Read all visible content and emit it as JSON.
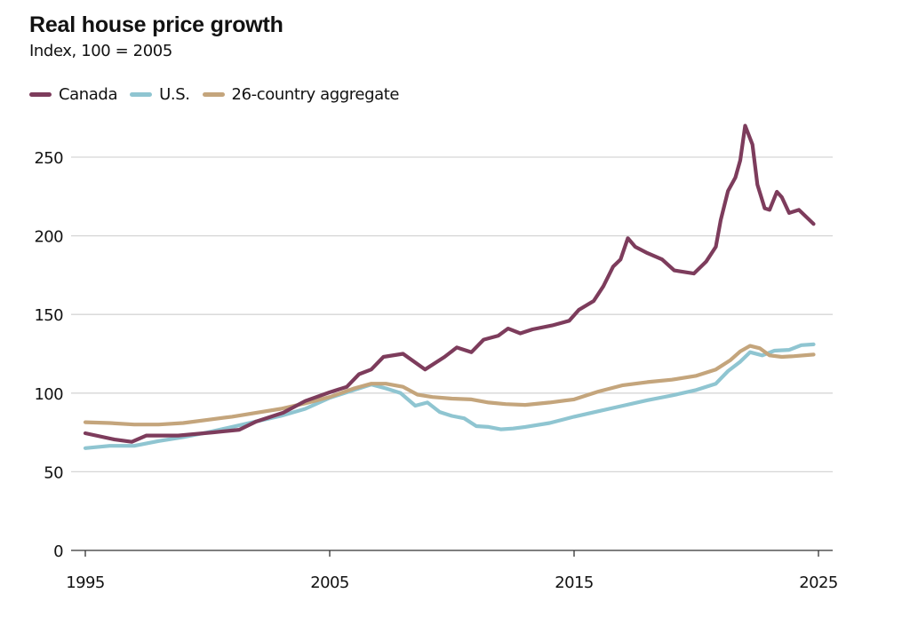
{
  "chart_data": {
    "type": "line",
    "title": "Real house price growth",
    "subtitle": "Index, 100 = 2005",
    "xlabel": "",
    "ylabel": "",
    "xlim": [
      1995,
      2025
    ],
    "ylim": [
      0,
      260
    ],
    "grid": true,
    "legend_position": "top-left",
    "x_ticks": [
      1995,
      2005,
      2015,
      2025
    ],
    "x_tick_labels": [
      "1995",
      "2005",
      "2015",
      "2025"
    ],
    "y_ticks": [
      0,
      50,
      100,
      150,
      200,
      250
    ],
    "y_tick_labels": [
      "0",
      "50",
      "100",
      "150",
      "200",
      "250"
    ],
    "series": [
      {
        "name": "Canada",
        "color": "#7d3c5c",
        "x": [
          1995.0,
          1996.2,
          1996.9,
          1997.5,
          1998.8,
          2000.2,
          2001.3,
          2002.0,
          2003.1,
          2004.0,
          2005.0,
          2005.7,
          2006.2,
          2006.7,
          2007.2,
          2008.0,
          2008.9,
          2009.7,
          2010.2,
          2010.8,
          2011.3,
          2011.9,
          2012.3,
          2012.8,
          2013.3,
          2014.1,
          2014.8,
          2015.2,
          2015.8,
          2016.2,
          2016.6,
          2016.9,
          2017.2,
          2017.5,
          2018.0,
          2018.6,
          2019.1,
          2019.9,
          2020.4,
          2020.8,
          2021.0,
          2021.3,
          2021.6,
          2021.8,
          2022.0,
          2022.3,
          2022.5,
          2022.8,
          2023.0,
          2023.3,
          2023.5,
          2023.8,
          2024.2,
          2024.8
        ],
        "values": [
          74.5,
          70.5,
          69,
          73,
          73,
          75,
          76.7,
          82,
          87.5,
          95,
          100.5,
          104,
          112,
          115,
          123,
          125,
          115,
          123,
          129,
          126,
          134,
          136.5,
          141,
          138,
          140.5,
          143,
          146,
          153,
          158.5,
          168,
          180.5,
          185,
          198.5,
          193,
          189,
          185,
          178,
          176,
          183.5,
          193,
          210,
          228.5,
          237,
          248,
          270,
          258,
          232.5,
          217.5,
          216.5,
          228,
          224.5,
          214.5,
          216.5,
          207.5
        ]
      },
      {
        "name": "U.S.",
        "color": "#8fc5d1",
        "x": [
          1995.0,
          1996.0,
          1997.0,
          1998.0,
          1999.0,
          2000.0,
          2001.0,
          2002.0,
          2003.0,
          2004.0,
          2005.0,
          2006.0,
          2006.7,
          2007.3,
          2007.9,
          2008.5,
          2009.0,
          2009.5,
          2010.0,
          2010.5,
          2011.0,
          2011.5,
          2012.0,
          2012.5,
          2013.0,
          2014.0,
          2015.0,
          2016.0,
          2017.0,
          2018.0,
          2019.0,
          2020.0,
          2020.8,
          2021.3,
          2021.8,
          2022.2,
          2022.7,
          2023.2,
          2023.8,
          2024.3,
          2024.8
        ],
        "values": [
          65,
          66.5,
          66.5,
          69.5,
          72,
          75,
          78.5,
          82,
          85.5,
          90,
          97,
          102,
          105.5,
          103,
          100,
          92,
          94,
          88,
          85.5,
          84,
          79,
          78.5,
          77,
          77.5,
          78.5,
          81,
          85,
          88.5,
          92,
          95.5,
          98.5,
          102,
          106,
          114,
          120,
          126,
          124,
          127,
          127.5,
          130.5,
          131
        ]
      },
      {
        "name": "26-country aggregate",
        "color": "#c4a57c",
        "x": [
          1995.0,
          1996.0,
          1997.0,
          1998.0,
          1999.0,
          2000.0,
          2001.0,
          2002.0,
          2003.0,
          2004.0,
          2005.0,
          2006.0,
          2006.7,
          2007.3,
          2008.0,
          2008.6,
          2009.2,
          2010.0,
          2010.8,
          2011.5,
          2012.2,
          2013.0,
          2014.0,
          2015.0,
          2016.0,
          2017.0,
          2018.0,
          2019.0,
          2020.0,
          2020.8,
          2021.4,
          2021.8,
          2022.2,
          2022.6,
          2023.0,
          2023.5,
          2024.0,
          2024.8
        ],
        "values": [
          81.5,
          81,
          80,
          80,
          81,
          83,
          85,
          87.5,
          90,
          93.5,
          97.5,
          103,
          106,
          106,
          104,
          99,
          97.5,
          96.5,
          96,
          94,
          93,
          92.5,
          94,
          96,
          101,
          105,
          107,
          108.5,
          111,
          115,
          121,
          126.5,
          130,
          128.5,
          124,
          123,
          123.5,
          124.5
        ]
      }
    ]
  }
}
